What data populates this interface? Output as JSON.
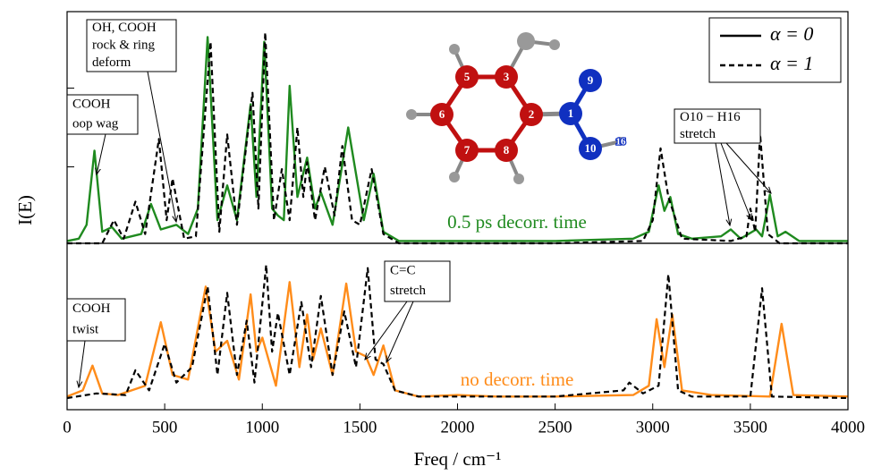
{
  "chart_data": [
    {
      "type": "line",
      "ylabel": "I(E)",
      "label": "0.5 ps decorr. time",
      "label_color": "#1f8a1f",
      "xlim": [
        0,
        4000
      ],
      "ylim": [
        0,
        1
      ],
      "yticks": [
        0.33,
        0.67
      ],
      "legend": "upper right",
      "series": [
        {
          "name": "α = 0",
          "color": "#1f8a1f",
          "dash": false,
          "x": [
            0,
            60,
            100,
            140,
            180,
            230,
            280,
            380,
            430,
            480,
            560,
            620,
            670,
            720,
            770,
            820,
            870,
            940,
            970,
            1010,
            1050,
            1080,
            1110,
            1140,
            1180,
            1230,
            1270,
            1300,
            1360,
            1440,
            1480,
            1520,
            1570,
            1620,
            1700,
            2000,
            2500,
            2900,
            2980,
            3030,
            3060,
            3090,
            3130,
            3200,
            3350,
            3400,
            3450,
            3530,
            3560,
            3600,
            3640,
            3680,
            3750,
            4000
          ],
          "values": [
            0.01,
            0.02,
            0.08,
            0.4,
            0.05,
            0.07,
            0.02,
            0.04,
            0.17,
            0.06,
            0.08,
            0.04,
            0.15,
            0.89,
            0.1,
            0.25,
            0.1,
            0.6,
            0.2,
            0.87,
            0.15,
            0.12,
            0.1,
            0.68,
            0.2,
            0.37,
            0.15,
            0.22,
            0.08,
            0.5,
            0.3,
            0.1,
            0.3,
            0.05,
            0.01,
            0.01,
            0.01,
            0.02,
            0.05,
            0.25,
            0.14,
            0.2,
            0.04,
            0.02,
            0.03,
            0.06,
            0.02,
            0.06,
            0.03,
            0.21,
            0.03,
            0.05,
            0.01,
            0.01
          ]
        },
        {
          "name": "α = 1",
          "color": "#000000",
          "dash": true,
          "x": [
            0,
            180,
            240,
            290,
            350,
            400,
            470,
            510,
            540,
            600,
            660,
            735,
            780,
            820,
            870,
            950,
            980,
            1015,
            1060,
            1100,
            1140,
            1180,
            1210,
            1230,
            1270,
            1320,
            1370,
            1410,
            1460,
            1500,
            1560,
            1620,
            1700,
            2500,
            2950,
            3000,
            3040,
            3080,
            3150,
            3400,
            3480,
            3500,
            3525,
            3550,
            3590,
            3650,
            4000
          ],
          "values": [
            0,
            0,
            0.1,
            0.02,
            0.18,
            0.04,
            0.45,
            0.1,
            0.28,
            0.02,
            0.03,
            0.87,
            0.05,
            0.47,
            0.08,
            0.65,
            0.15,
            0.91,
            0.1,
            0.32,
            0.1,
            0.5,
            0.2,
            0.35,
            0.1,
            0.33,
            0.12,
            0.42,
            0.1,
            0.08,
            0.32,
            0.04,
            0,
            0,
            0.01,
            0.1,
            0.41,
            0.2,
            0.02,
            0.01,
            0.03,
            0.15,
            0.05,
            0.47,
            0.04,
            0,
            0
          ]
        }
      ],
      "annotations": [
        {
          "lines": [
            "OH, COOH",
            "rock & ring",
            "deform"
          ]
        },
        {
          "lines": [
            "COOH",
            "oop wag"
          ]
        },
        {
          "lines": [
            "O10 − H16",
            "stretch"
          ]
        }
      ],
      "inset_labels": [
        "5",
        "3",
        "6",
        "2",
        "1",
        "9",
        "7",
        "8",
        "10",
        "16"
      ]
    },
    {
      "type": "line",
      "xlabel": "Freq / cm⁻¹",
      "label": "no decorr. time",
      "label_color": "#ff8c1a",
      "xlim": [
        0,
        4000
      ],
      "ylim": [
        -0.075,
        1
      ],
      "yticks": [
        0.5
      ],
      "xticks": [
        0,
        500,
        1000,
        1500,
        2000,
        2500,
        3000,
        3500,
        4000
      ],
      "series": [
        {
          "color": "#ff8c1a",
          "dash": false,
          "x": [
            0,
            80,
            130,
            180,
            260,
            400,
            480,
            540,
            620,
            710,
            760,
            820,
            880,
            940,
            970,
            1000,
            1070,
            1140,
            1190,
            1230,
            1260,
            1300,
            1360,
            1430,
            1480,
            1530,
            1570,
            1620,
            1680,
            1800,
            2000,
            2200,
            2500,
            2900,
            2980,
            3020,
            3060,
            3100,
            3150,
            3300,
            3600,
            3660,
            3720,
            4000
          ],
          "values": [
            0.01,
            0.05,
            0.21,
            0.03,
            0.02,
            0.08,
            0.49,
            0.15,
            0.12,
            0.72,
            0.3,
            0.37,
            0.12,
            0.67,
            0.3,
            0.39,
            0.08,
            0.75,
            0.2,
            0.54,
            0.25,
            0.45,
            0.15,
            0.74,
            0.3,
            0.27,
            0.15,
            0.34,
            0.05,
            0.01,
            0.02,
            0.01,
            0.01,
            0.02,
            0.08,
            0.51,
            0.2,
            0.54,
            0.05,
            0.02,
            0.01,
            0.48,
            0.02,
            0.01
          ]
        },
        {
          "color": "#000000",
          "dash": true,
          "x": [
            0,
            150,
            300,
            350,
            420,
            500,
            560,
            640,
            720,
            770,
            820,
            870,
            920,
            960,
            1020,
            1050,
            1080,
            1140,
            1200,
            1250,
            1300,
            1360,
            1420,
            1480,
            1540,
            1580,
            1620,
            1680,
            1800,
            2500,
            2850,
            2880,
            2950,
            3030,
            3080,
            3130,
            3200,
            3500,
            3560,
            3610,
            4000
          ],
          "values": [
            0,
            0.03,
            0.02,
            0.18,
            0.05,
            0.35,
            0.1,
            0.2,
            0.72,
            0.15,
            0.68,
            0.15,
            0.5,
            0.1,
            0.86,
            0.3,
            0.55,
            0.15,
            0.62,
            0.2,
            0.66,
            0.15,
            0.56,
            0.2,
            0.84,
            0.25,
            0.22,
            0.05,
            0.01,
            0.01,
            0.05,
            0.1,
            0.03,
            0.08,
            0.8,
            0.05,
            0.01,
            0.01,
            0.71,
            0.01,
            0
          ]
        }
      ],
      "annotations": [
        {
          "lines": [
            "C=C",
            "stretch"
          ]
        },
        {
          "lines": [
            "COOH",
            "twist"
          ]
        }
      ]
    }
  ]
}
